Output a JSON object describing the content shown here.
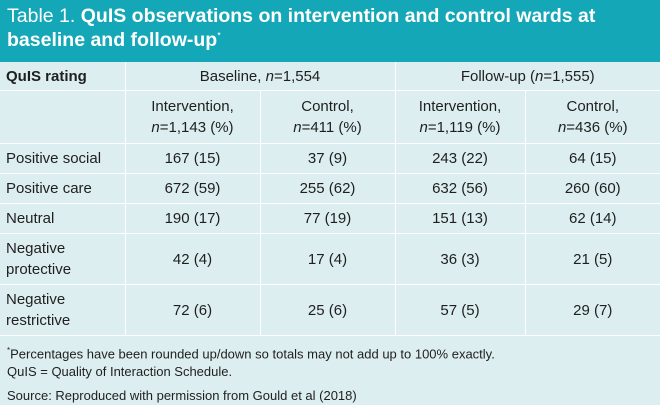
{
  "title": {
    "prefix": "Table 1.",
    "main": "QuIS observations on intervention and control wards at baseline and follow-up",
    "marker": "*"
  },
  "header": {
    "rating_label": "QuIS rating",
    "baseline_label": "Baseline,",
    "baseline_n": "n",
    "baseline_count": "=1,554",
    "followup_label": "Follow-up (",
    "followup_n": "n",
    "followup_count": "=1,555)",
    "sub": [
      {
        "line1": "Intervention,",
        "n": "n",
        "rest": "=1,143 (%)"
      },
      {
        "line1": "Control,",
        "n": "n",
        "rest": "=411 (%)"
      },
      {
        "line1": "Intervention,",
        "n": "n",
        "rest": "=1,119 (%)"
      },
      {
        "line1": "Control,",
        "n": "n",
        "rest": "=436 (%)"
      }
    ]
  },
  "rows": [
    {
      "rating": "Positive social",
      "values": [
        "167 (15)",
        "37 (9)",
        "243 (22)",
        "64 (15)"
      ]
    },
    {
      "rating": "Positive care",
      "values": [
        "672 (59)",
        "255 (62)",
        "632 (56)",
        "260 (60)"
      ]
    },
    {
      "rating": "Neutral",
      "values": [
        "190 (17)",
        "77 (19)",
        "151 (13)",
        "62 (14)"
      ]
    },
    {
      "rating": "Negative protective",
      "values": [
        "42 (4)",
        "17 (4)",
        "36 (3)",
        "21 (5)"
      ]
    },
    {
      "rating": "Negative restrictive",
      "values": [
        "72 (6)",
        "25 (6)",
        "57 (5)",
        "29 (7)"
      ]
    }
  ],
  "notes": {
    "marker": "*",
    "footnote": "Percentages have been rounded up/down so totals may not add up to 100% exactly.",
    "abbreviation": "QuIS = Quality of Interaction Schedule.",
    "source": "Source: Reproduced with permission from Gould et al (2018)"
  }
}
